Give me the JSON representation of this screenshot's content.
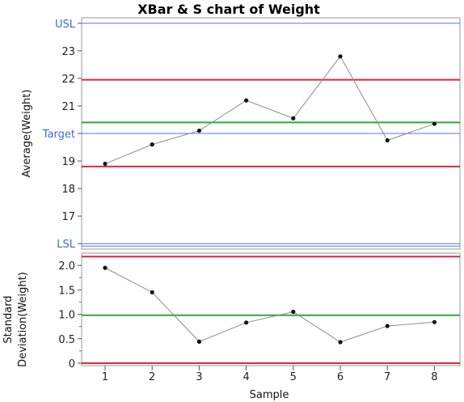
{
  "title": "XBar & S chart of Weight",
  "colors": {
    "limit": "#d62a3a",
    "center": "#2ea836",
    "spec": "#4b7bd1",
    "points": "#111111",
    "line": "#8c8c8c",
    "spec_label": "#3b6fcf"
  },
  "chart_data": [
    {
      "type": "line",
      "name": "xbar",
      "ylabel": "Average(Weight)",
      "ylim": [
        15.8,
        24.2
      ],
      "yticks": [
        17,
        18,
        19,
        21,
        22,
        23
      ],
      "x": [
        1,
        2,
        3,
        4,
        5,
        6,
        7,
        8
      ],
      "values": [
        18.9,
        19.6,
        20.1,
        21.2,
        20.55,
        22.8,
        19.75,
        20.35
      ],
      "ucl": 21.95,
      "center": 20.4,
      "lcl": 18.8,
      "spec_lines": [
        {
          "label": "USL",
          "value": 24.0
        },
        {
          "label": "Target",
          "value": 20.0
        },
        {
          "label": "LSL",
          "value": 16.0
        }
      ],
      "grid": false
    },
    {
      "type": "line",
      "name": "s",
      "ylabel": "Standard Deviation(Weight)",
      "ylim": [
        -0.05,
        2.25
      ],
      "yticks": [
        "0",
        "0.5",
        "1.0",
        "1.5",
        "2.0"
      ],
      "ytick_values": [
        0,
        0.5,
        1.0,
        1.5,
        2.0
      ],
      "x": [
        1,
        2,
        3,
        4,
        5,
        6,
        7,
        8
      ],
      "xticks": [
        "1",
        "2",
        "3",
        "4",
        "5",
        "6",
        "7",
        "8"
      ],
      "xlabel": "Sample",
      "values": [
        1.95,
        1.45,
        0.44,
        0.83,
        1.05,
        0.43,
        0.76,
        0.84
      ],
      "ucl": 2.18,
      "center": 0.98,
      "lcl": 0.0,
      "grid": false
    }
  ]
}
